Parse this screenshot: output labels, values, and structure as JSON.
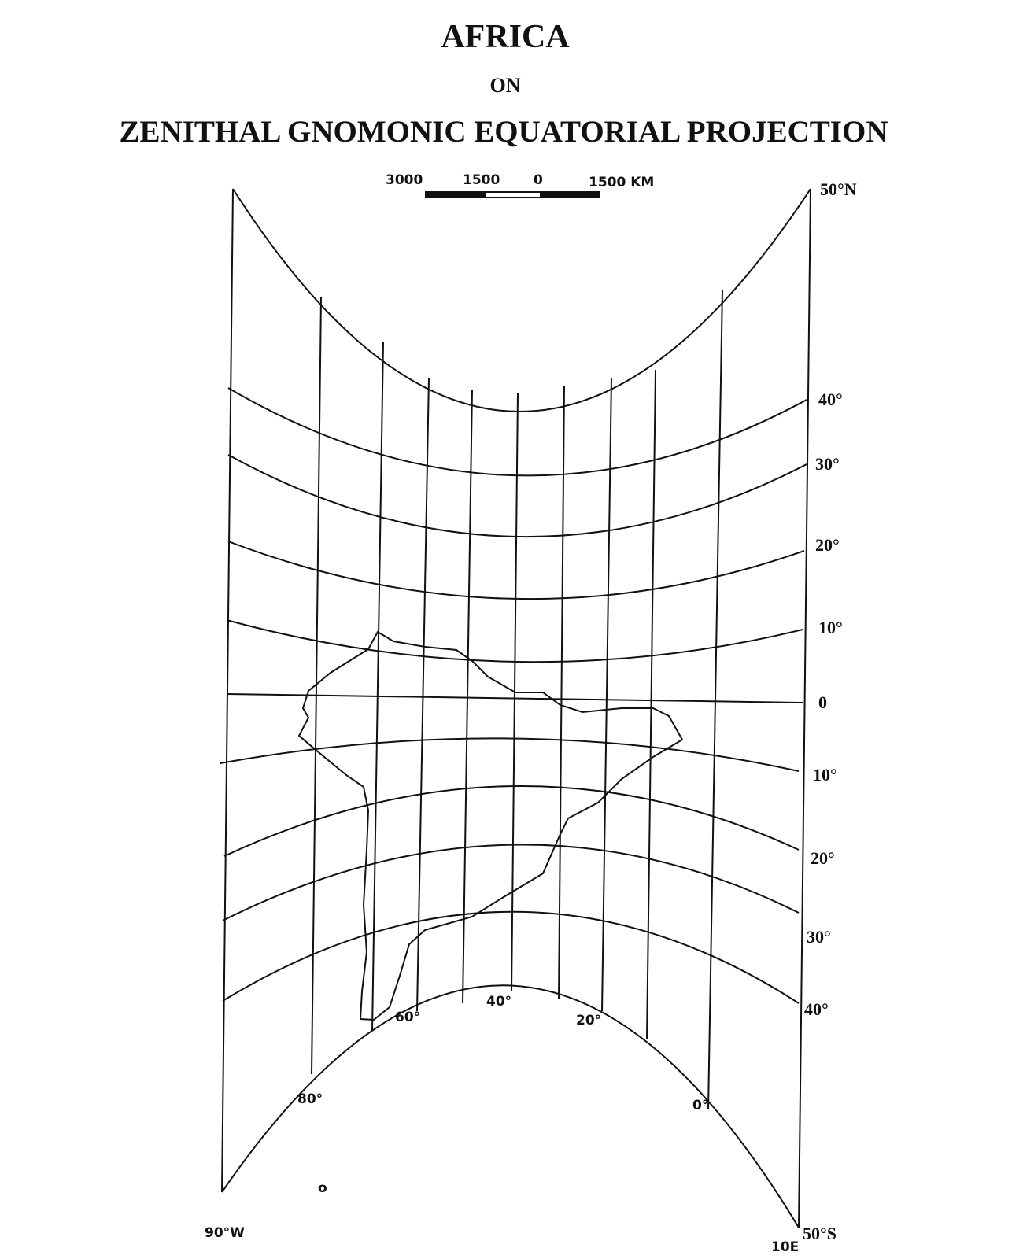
{
  "title": "AFRICA",
  "connector": "ON",
  "subtitle": "ZENITHAL GNOMONIC EQUATORIAL PROJECTION",
  "scale_bar": {
    "labels": [
      "3000",
      "1500",
      "0",
      "1500 KM"
    ]
  },
  "parallel_labels": [
    "50°N",
    "40°",
    "30°",
    "20°",
    "10°",
    "0",
    "10°",
    "20°",
    "30°",
    "40°",
    "50°S"
  ],
  "meridian_labels": [
    "90°W",
    "80°",
    "60°",
    "40°",
    "20°",
    "0°",
    "10E"
  ],
  "stray_mark": "o",
  "colors": {
    "ink": "#111111",
    "paper": "#ffffff"
  }
}
